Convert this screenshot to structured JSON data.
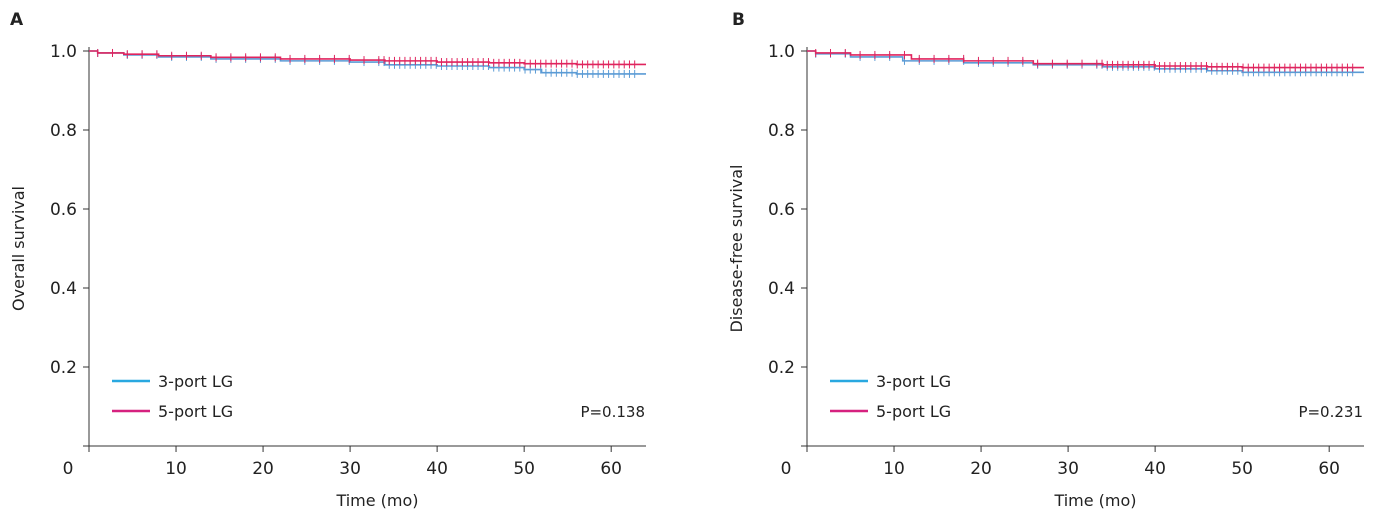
{
  "chart_data": [
    {
      "panel": "A",
      "type": "line",
      "ylabel": "Overall survival",
      "xlabel": "Time (mo)",
      "xlim": [
        0,
        64
      ],
      "ylim": [
        0,
        1.0
      ],
      "xticks": [
        "0",
        "10",
        "20",
        "30",
        "40",
        "50",
        "60"
      ],
      "yticks": [
        "0.2",
        "0.4",
        "0.6",
        "0.8",
        "1.0"
      ],
      "legend_position": "bottom-left",
      "annotation": "P=0.138",
      "series": [
        {
          "name": "3-port LG",
          "color": "#5b9bd5",
          "x": [
            0,
            1,
            4,
            8,
            14,
            22,
            30,
            34,
            40,
            46,
            50,
            52,
            56,
            64
          ],
          "y": [
            1.0,
            0.995,
            0.99,
            0.985,
            0.98,
            0.975,
            0.972,
            0.965,
            0.962,
            0.958,
            0.953,
            0.945,
            0.942,
            0.942
          ]
        },
        {
          "name": "5-port LG",
          "color": "#e0245e",
          "x": [
            0,
            1,
            4,
            8,
            14,
            22,
            30,
            34,
            40,
            46,
            50,
            56,
            64
          ],
          "y": [
            1.0,
            0.995,
            0.992,
            0.988,
            0.984,
            0.98,
            0.977,
            0.975,
            0.972,
            0.97,
            0.968,
            0.966,
            0.966
          ]
        }
      ],
      "legend": [
        "3-port LG",
        "5-port LG"
      ],
      "legend_colors": [
        "#29a8e0",
        "#d6217f"
      ]
    },
    {
      "panel": "B",
      "type": "line",
      "ylabel": "Disease-free survival",
      "xlabel": "Time (mo)",
      "xlim": [
        0,
        64
      ],
      "ylim": [
        0,
        1.0
      ],
      "xticks": [
        "0",
        "10",
        "20",
        "30",
        "40",
        "50",
        "60"
      ],
      "yticks": [
        "0.2",
        "0.4",
        "0.6",
        "0.8",
        "1.0"
      ],
      "legend_position": "bottom-left",
      "annotation": "P=0.231",
      "series": [
        {
          "name": "3-port LG",
          "color": "#5b9bd5",
          "x": [
            0,
            1,
            5,
            11,
            18,
            26,
            34,
            40,
            46,
            50,
            56,
            64
          ],
          "y": [
            1.0,
            0.993,
            0.985,
            0.975,
            0.97,
            0.965,
            0.96,
            0.955,
            0.95,
            0.946,
            0.946,
            0.946
          ]
        },
        {
          "name": "5-port LG",
          "color": "#e0245e",
          "x": [
            0,
            1,
            5,
            12,
            18,
            26,
            34,
            40,
            46,
            50,
            56,
            64
          ],
          "y": [
            1.0,
            0.995,
            0.99,
            0.98,
            0.975,
            0.968,
            0.965,
            0.962,
            0.96,
            0.958,
            0.958,
            0.958
          ]
        }
      ],
      "legend": [
        "3-port LG",
        "5-port LG"
      ],
      "legend_colors": [
        "#29a8e0",
        "#d6217f"
      ]
    }
  ],
  "panels": [
    {
      "letter": "A"
    },
    {
      "letter": "B"
    }
  ]
}
